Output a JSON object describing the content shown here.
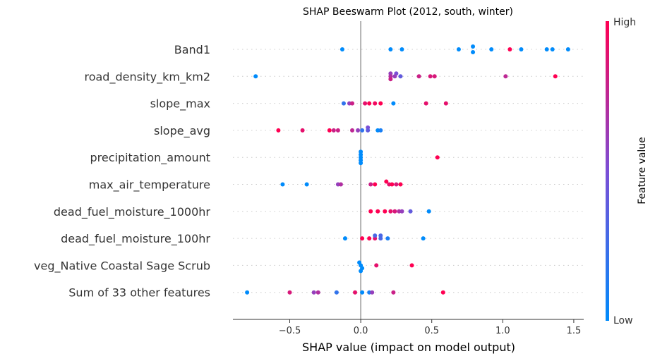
{
  "chart_data": {
    "type": "scatter",
    "subtype": "beeswarm",
    "title": "SHAP Beeswarm Plot (2012, south, winter)",
    "xlabel": "SHAP value (impact on model output)",
    "xlim": [
      -0.9,
      1.57
    ],
    "xticks": [
      -0.5,
      0.0,
      0.5,
      1.0,
      1.5
    ],
    "xtick_labels": [
      "−0.5",
      "0.0",
      "0.5",
      "1.0",
      "1.5"
    ],
    "colorbar": {
      "label": "Feature value",
      "high": "High",
      "low": "Low"
    },
    "colors": {
      "low": "#008bfb",
      "mid": "#7b4fd6",
      "high": "#ff0052",
      "zero_line": "#999999",
      "row_dots": "#cccccc"
    },
    "features": [
      {
        "name": "Band1",
        "points": [
          {
            "x": -0.13,
            "v": 0.0,
            "dy": 0
          },
          {
            "x": 0.21,
            "v": 0.0,
            "dy": 0
          },
          {
            "x": 0.29,
            "v": 0.0,
            "dy": 0
          },
          {
            "x": 0.69,
            "v": 0.0,
            "dy": 0
          },
          {
            "x": 0.79,
            "v": 0.0,
            "dy": -1
          },
          {
            "x": 0.79,
            "v": 0.0,
            "dy": 1
          },
          {
            "x": 0.92,
            "v": 0.0,
            "dy": 0
          },
          {
            "x": 1.05,
            "v": 1.0,
            "dy": 0
          },
          {
            "x": 1.13,
            "v": 0.0,
            "dy": 0
          },
          {
            "x": 1.31,
            "v": 0.0,
            "dy": 0
          },
          {
            "x": 1.35,
            "v": 0.0,
            "dy": 0
          },
          {
            "x": 1.46,
            "v": 0.0,
            "dy": 0
          }
        ]
      },
      {
        "name": "road_density_km_km2",
        "points": [
          {
            "x": -0.74,
            "v": 0.0,
            "dy": 0
          },
          {
            "x": 0.21,
            "v": 0.6,
            "dy": -1
          },
          {
            "x": 0.25,
            "v": 0.5,
            "dy": -1
          },
          {
            "x": 0.21,
            "v": 0.7,
            "dy": 0
          },
          {
            "x": 0.24,
            "v": 0.6,
            "dy": 0
          },
          {
            "x": 0.28,
            "v": 0.4,
            "dy": 0
          },
          {
            "x": 0.21,
            "v": 0.8,
            "dy": 1
          },
          {
            "x": 0.41,
            "v": 0.8,
            "dy": 0
          },
          {
            "x": 0.49,
            "v": 0.85,
            "dy": 0
          },
          {
            "x": 0.52,
            "v": 0.85,
            "dy": 0
          },
          {
            "x": 1.02,
            "v": 0.75,
            "dy": 0
          },
          {
            "x": 1.37,
            "v": 1.0,
            "dy": 0
          }
        ]
      },
      {
        "name": "slope_max",
        "points": [
          {
            "x": -0.12,
            "v": 0.2,
            "dy": 0
          },
          {
            "x": -0.08,
            "v": 0.6,
            "dy": 0
          },
          {
            "x": -0.06,
            "v": 0.8,
            "dy": 0
          },
          {
            "x": 0.03,
            "v": 0.9,
            "dy": 0
          },
          {
            "x": 0.06,
            "v": 1.0,
            "dy": 0
          },
          {
            "x": 0.1,
            "v": 0.95,
            "dy": 0
          },
          {
            "x": 0.14,
            "v": 1.0,
            "dy": 0
          },
          {
            "x": 0.23,
            "v": 0.0,
            "dy": 0
          },
          {
            "x": 0.46,
            "v": 0.9,
            "dy": 0
          },
          {
            "x": 0.6,
            "v": 0.9,
            "dy": 0
          }
        ]
      },
      {
        "name": "slope_avg",
        "points": [
          {
            "x": -0.58,
            "v": 1.0,
            "dy": 0
          },
          {
            "x": -0.41,
            "v": 0.9,
            "dy": 0
          },
          {
            "x": -0.22,
            "v": 1.0,
            "dy": 0
          },
          {
            "x": -0.19,
            "v": 0.8,
            "dy": 0
          },
          {
            "x": -0.16,
            "v": 0.8,
            "dy": 0
          },
          {
            "x": -0.06,
            "v": 0.75,
            "dy": 0
          },
          {
            "x": -0.02,
            "v": 0.6,
            "dy": 0
          },
          {
            "x": 0.01,
            "v": 0.2,
            "dy": 0
          },
          {
            "x": 0.05,
            "v": 0.5,
            "dy": -1
          },
          {
            "x": 0.05,
            "v": 0.4,
            "dy": 0
          },
          {
            "x": 0.12,
            "v": 0.0,
            "dy": 0
          },
          {
            "x": 0.14,
            "v": 0.1,
            "dy": 0
          }
        ]
      },
      {
        "name": "precipitation_amount",
        "points": [
          {
            "x": 0.0,
            "v": 0.0,
            "dy": -2
          },
          {
            "x": 0.0,
            "v": 0.0,
            "dy": -1
          },
          {
            "x": 0.0,
            "v": 0.0,
            "dy": 0
          },
          {
            "x": 0.0,
            "v": 0.0,
            "dy": 1
          },
          {
            "x": 0.0,
            "v": 0.0,
            "dy": 2
          },
          {
            "x": 0.54,
            "v": 1.0,
            "dy": 0
          }
        ]
      },
      {
        "name": "max_air_temperature",
        "points": [
          {
            "x": -0.55,
            "v": 0.0,
            "dy": 0
          },
          {
            "x": -0.38,
            "v": 0.0,
            "dy": 0
          },
          {
            "x": -0.16,
            "v": 0.6,
            "dy": 0
          },
          {
            "x": -0.14,
            "v": 0.7,
            "dy": 0
          },
          {
            "x": 0.07,
            "v": 0.8,
            "dy": 0
          },
          {
            "x": 0.1,
            "v": 1.0,
            "dy": 0
          },
          {
            "x": 0.18,
            "v": 1.0,
            "dy": -1
          },
          {
            "x": 0.2,
            "v": 0.9,
            "dy": 0
          },
          {
            "x": 0.22,
            "v": 1.0,
            "dy": 0
          },
          {
            "x": 0.25,
            "v": 0.85,
            "dy": 0
          },
          {
            "x": 0.28,
            "v": 1.0,
            "dy": 0
          }
        ]
      },
      {
        "name": "dead_fuel_moisture_1000hr",
        "points": [
          {
            "x": 0.07,
            "v": 1.0,
            "dy": 0
          },
          {
            "x": 0.12,
            "v": 1.0,
            "dy": 0
          },
          {
            "x": 0.17,
            "v": 1.0,
            "dy": 0
          },
          {
            "x": 0.21,
            "v": 0.9,
            "dy": 0
          },
          {
            "x": 0.24,
            "v": 0.85,
            "dy": 0
          },
          {
            "x": 0.27,
            "v": 0.7,
            "dy": 0
          },
          {
            "x": 0.29,
            "v": 0.6,
            "dy": 0
          },
          {
            "x": 0.35,
            "v": 0.4,
            "dy": 0
          },
          {
            "x": 0.48,
            "v": 0.0,
            "dy": 0
          }
        ]
      },
      {
        "name": "dead_fuel_moisture_100hr",
        "points": [
          {
            "x": -0.11,
            "v": 0.0,
            "dy": 0
          },
          {
            "x": 0.01,
            "v": 1.0,
            "dy": 0
          },
          {
            "x": 0.06,
            "v": 1.0,
            "dy": 0
          },
          {
            "x": 0.1,
            "v": 0.9,
            "dy": 0
          },
          {
            "x": 0.1,
            "v": 0.3,
            "dy": -1
          },
          {
            "x": 0.14,
            "v": 0.3,
            "dy": -1
          },
          {
            "x": 0.14,
            "v": 0.3,
            "dy": 0
          },
          {
            "x": 0.19,
            "v": 0.1,
            "dy": 0
          },
          {
            "x": 0.44,
            "v": 0.0,
            "dy": 0
          }
        ]
      },
      {
        "name": "veg_Native Coastal Sage Scrub",
        "points": [
          {
            "x": -0.01,
            "v": 0.0,
            "dy": -1
          },
          {
            "x": 0.0,
            "v": 0.0,
            "dy": 0
          },
          {
            "x": 0.01,
            "v": 0.0,
            "dy": 1
          },
          {
            "x": 0.0,
            "v": 0.0,
            "dy": 2
          },
          {
            "x": 0.11,
            "v": 0.9,
            "dy": 0
          },
          {
            "x": 0.36,
            "v": 1.0,
            "dy": 0
          }
        ]
      },
      {
        "name": "Sum of 33 other features",
        "points": [
          {
            "x": -0.8,
            "v": 0.0,
            "dy": 0
          },
          {
            "x": -0.5,
            "v": 0.85,
            "dy": 0
          },
          {
            "x": -0.33,
            "v": 0.6,
            "dy": 0
          },
          {
            "x": -0.3,
            "v": 0.7,
            "dy": 0
          },
          {
            "x": -0.17,
            "v": 0.2,
            "dy": 0
          },
          {
            "x": -0.04,
            "v": 0.9,
            "dy": 0
          },
          {
            "x": 0.01,
            "v": 0.0,
            "dy": 0
          },
          {
            "x": 0.06,
            "v": 0.1,
            "dy": 0
          },
          {
            "x": 0.08,
            "v": 0.6,
            "dy": 0
          },
          {
            "x": 0.23,
            "v": 0.8,
            "dy": 0
          },
          {
            "x": 0.58,
            "v": 1.0,
            "dy": 0
          }
        ]
      }
    ]
  }
}
